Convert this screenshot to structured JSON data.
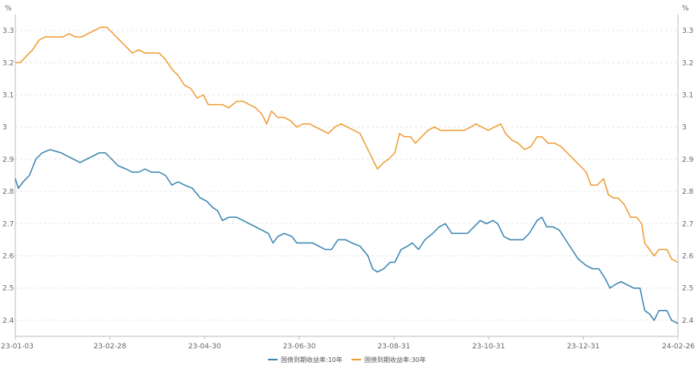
{
  "chart_data": {
    "type": "line",
    "left_unit": "%",
    "right_unit": "%",
    "ylim": [
      2.35,
      3.35
    ],
    "y_ticks": [
      2.4,
      2.5,
      2.6,
      2.7,
      2.8,
      2.9,
      3.0,
      3.1,
      3.2,
      3.3
    ],
    "y_tick_labels": [
      "2.4",
      "2.5",
      "2.6",
      "2.7",
      "2.8",
      "2.9",
      "3",
      "3.1",
      "3.2",
      "3.3"
    ],
    "x_range": [
      "23-01-03",
      "24-02-26"
    ],
    "x_tick_labels": [
      "23-01-03",
      "23-02-28",
      "23-04-30",
      "23-06-30",
      "23-08-31",
      "23-10-31",
      "23-12-31",
      "24-02-26"
    ],
    "grid": true,
    "legend_position": "bottom-center",
    "series": [
      {
        "name": "国债到期收益率:10年",
        "color": "#3a84b0",
        "points": [
          [
            "23-01-03",
            2.84
          ],
          [
            "23-01-05",
            2.81
          ],
          [
            "23-01-08",
            2.83
          ],
          [
            "23-01-12",
            2.85
          ],
          [
            "23-01-16",
            2.9
          ],
          [
            "23-01-20",
            2.92
          ],
          [
            "23-01-25",
            2.93
          ],
          [
            "23-02-01",
            2.92
          ],
          [
            "23-02-05",
            2.91
          ],
          [
            "23-02-09",
            2.9
          ],
          [
            "23-02-13",
            2.89
          ],
          [
            "23-02-17",
            2.9
          ],
          [
            "23-02-21",
            2.91
          ],
          [
            "23-02-25",
            2.92
          ],
          [
            "23-03-01",
            2.92
          ],
          [
            "23-03-05",
            2.9
          ],
          [
            "23-03-09",
            2.88
          ],
          [
            "23-03-14",
            2.87
          ],
          [
            "23-03-18",
            2.86
          ],
          [
            "23-03-22",
            2.86
          ],
          [
            "23-03-26",
            2.87
          ],
          [
            "23-03-30",
            2.86
          ],
          [
            "23-04-04",
            2.86
          ],
          [
            "23-04-08",
            2.85
          ],
          [
            "23-04-12",
            2.82
          ],
          [
            "23-04-16",
            2.83
          ],
          [
            "23-04-20",
            2.82
          ],
          [
            "23-04-25",
            2.81
          ],
          [
            "23-04-30",
            2.78
          ],
          [
            "23-05-04",
            2.77
          ],
          [
            "23-05-08",
            2.75
          ],
          [
            "23-05-11",
            2.74
          ],
          [
            "23-05-14",
            2.71
          ],
          [
            "23-05-18",
            2.72
          ],
          [
            "23-05-23",
            2.72
          ],
          [
            "23-05-27",
            2.71
          ],
          [
            "23-05-31",
            2.7
          ],
          [
            "23-06-04",
            2.69
          ],
          [
            "23-06-08",
            2.68
          ],
          [
            "23-06-12",
            2.67
          ],
          [
            "23-06-15",
            2.64
          ],
          [
            "23-06-18",
            2.66
          ],
          [
            "23-06-22",
            2.67
          ],
          [
            "23-06-27",
            2.66
          ],
          [
            "23-06-30",
            2.64
          ],
          [
            "23-07-05",
            2.64
          ],
          [
            "23-07-10",
            2.64
          ],
          [
            "23-07-14",
            2.63
          ],
          [
            "23-07-18",
            2.62
          ],
          [
            "23-07-22",
            2.62
          ],
          [
            "23-07-26",
            2.65
          ],
          [
            "23-07-31",
            2.65
          ],
          [
            "23-08-04",
            2.64
          ],
          [
            "23-08-09",
            2.63
          ],
          [
            "23-08-14",
            2.6
          ],
          [
            "23-08-17",
            2.56
          ],
          [
            "23-08-20",
            2.55
          ],
          [
            "23-08-24",
            2.56
          ],
          [
            "23-08-28",
            2.58
          ],
          [
            "23-08-31",
            2.58
          ],
          [
            "23-09-04",
            2.62
          ],
          [
            "23-09-08",
            2.63
          ],
          [
            "23-09-11",
            2.64
          ],
          [
            "23-09-15",
            2.62
          ],
          [
            "23-09-19",
            2.65
          ],
          [
            "23-09-24",
            2.67
          ],
          [
            "23-09-28",
            2.69
          ],
          [
            "23-10-02",
            2.7
          ],
          [
            "23-10-06",
            2.67
          ],
          [
            "23-10-11",
            2.67
          ],
          [
            "23-10-16",
            2.67
          ],
          [
            "23-10-20",
            2.69
          ],
          [
            "23-10-24",
            2.71
          ],
          [
            "23-10-28",
            2.7
          ],
          [
            "23-11-01",
            2.71
          ],
          [
            "23-11-04",
            2.7
          ],
          [
            "23-11-08",
            2.66
          ],
          [
            "23-11-12",
            2.65
          ],
          [
            "23-11-16",
            2.65
          ],
          [
            "23-11-20",
            2.65
          ],
          [
            "23-11-24",
            2.67
          ],
          [
            "23-11-29",
            2.71
          ],
          [
            "23-12-02",
            2.72
          ],
          [
            "23-12-05",
            2.69
          ],
          [
            "23-12-09",
            2.69
          ],
          [
            "23-12-13",
            2.68
          ],
          [
            "23-12-17",
            2.65
          ],
          [
            "23-12-21",
            2.62
          ],
          [
            "23-12-25",
            2.59
          ],
          [
            "23-12-30",
            2.57
          ],
          [
            "24-01-03",
            2.56
          ],
          [
            "24-01-07",
            2.56
          ],
          [
            "24-01-11",
            2.53
          ],
          [
            "24-01-14",
            2.5
          ],
          [
            "24-01-17",
            2.51
          ],
          [
            "24-01-21",
            2.52
          ],
          [
            "24-01-25",
            2.51
          ],
          [
            "24-01-29",
            2.5
          ],
          [
            "24-02-02",
            2.5
          ],
          [
            "24-02-05",
            2.43
          ],
          [
            "24-02-08",
            2.42
          ],
          [
            "24-02-11",
            2.4
          ],
          [
            "24-02-14",
            2.43
          ],
          [
            "24-02-19",
            2.43
          ],
          [
            "24-02-22",
            2.4
          ],
          [
            "24-02-26",
            2.39
          ]
        ]
      },
      {
        "name": "国债到期收益率:30年",
        "color": "#ee9d36",
        "points": [
          [
            "23-01-03",
            3.2
          ],
          [
            "23-01-06",
            3.2
          ],
          [
            "23-01-10",
            3.22
          ],
          [
            "23-01-14",
            3.24
          ],
          [
            "23-01-18",
            3.27
          ],
          [
            "23-01-22",
            3.28
          ],
          [
            "23-01-28",
            3.28
          ],
          [
            "23-02-02",
            3.28
          ],
          [
            "23-02-06",
            3.29
          ],
          [
            "23-02-10",
            3.28
          ],
          [
            "23-02-14",
            3.28
          ],
          [
            "23-02-18",
            3.29
          ],
          [
            "23-02-22",
            3.3
          ],
          [
            "23-02-26",
            3.31
          ],
          [
            "23-03-02",
            3.31
          ],
          [
            "23-03-06",
            3.29
          ],
          [
            "23-03-10",
            3.27
          ],
          [
            "23-03-14",
            3.25
          ],
          [
            "23-03-18",
            3.23
          ],
          [
            "23-03-22",
            3.24
          ],
          [
            "23-03-26",
            3.23
          ],
          [
            "23-03-30",
            3.23
          ],
          [
            "23-04-04",
            3.23
          ],
          [
            "23-04-08",
            3.21
          ],
          [
            "23-04-12",
            3.18
          ],
          [
            "23-04-16",
            3.16
          ],
          [
            "23-04-20",
            3.13
          ],
          [
            "23-04-24",
            3.12
          ],
          [
            "23-04-28",
            3.09
          ],
          [
            "23-05-02",
            3.1
          ],
          [
            "23-05-05",
            3.07
          ],
          [
            "23-05-09",
            3.07
          ],
          [
            "23-05-14",
            3.07
          ],
          [
            "23-05-18",
            3.06
          ],
          [
            "23-05-23",
            3.08
          ],
          [
            "23-05-27",
            3.08
          ],
          [
            "23-05-31",
            3.07
          ],
          [
            "23-06-04",
            3.06
          ],
          [
            "23-06-08",
            3.04
          ],
          [
            "23-06-11",
            3.01
          ],
          [
            "23-06-14",
            3.05
          ],
          [
            "23-06-18",
            3.03
          ],
          [
            "23-06-22",
            3.03
          ],
          [
            "23-06-26",
            3.02
          ],
          [
            "23-06-30",
            3.0
          ],
          [
            "23-07-04",
            3.01
          ],
          [
            "23-07-08",
            3.01
          ],
          [
            "23-07-12",
            3.0
          ],
          [
            "23-07-16",
            2.99
          ],
          [
            "23-07-20",
            2.98
          ],
          [
            "23-07-24",
            3.0
          ],
          [
            "23-07-28",
            3.01
          ],
          [
            "23-08-01",
            3.0
          ],
          [
            "23-08-05",
            2.99
          ],
          [
            "23-08-09",
            2.98
          ],
          [
            "23-08-13",
            2.94
          ],
          [
            "23-08-17",
            2.9
          ],
          [
            "23-08-20",
            2.87
          ],
          [
            "23-08-24",
            2.89
          ],
          [
            "23-08-27",
            2.9
          ],
          [
            "23-08-31",
            2.92
          ],
          [
            "23-09-03",
            2.98
          ],
          [
            "23-09-06",
            2.97
          ],
          [
            "23-09-10",
            2.97
          ],
          [
            "23-09-13",
            2.95
          ],
          [
            "23-09-17",
            2.97
          ],
          [
            "23-09-21",
            2.99
          ],
          [
            "23-09-25",
            3.0
          ],
          [
            "23-09-29",
            2.99
          ],
          [
            "23-10-04",
            2.99
          ],
          [
            "23-10-09",
            2.99
          ],
          [
            "23-10-14",
            2.99
          ],
          [
            "23-10-18",
            3.0
          ],
          [
            "23-10-21",
            3.01
          ],
          [
            "23-10-25",
            3.0
          ],
          [
            "23-10-29",
            2.99
          ],
          [
            "23-11-02",
            3.0
          ],
          [
            "23-11-06",
            3.01
          ],
          [
            "23-11-09",
            2.98
          ],
          [
            "23-11-13",
            2.96
          ],
          [
            "23-11-17",
            2.95
          ],
          [
            "23-11-21",
            2.93
          ],
          [
            "23-11-25",
            2.94
          ],
          [
            "23-11-29",
            2.97
          ],
          [
            "23-12-02",
            2.97
          ],
          [
            "23-12-06",
            2.95
          ],
          [
            "23-12-10",
            2.95
          ],
          [
            "23-12-14",
            2.94
          ],
          [
            "23-12-18",
            2.92
          ],
          [
            "23-12-22",
            2.9
          ],
          [
            "23-12-26",
            2.88
          ],
          [
            "23-12-30",
            2.86
          ],
          [
            "24-01-02",
            2.82
          ],
          [
            "24-01-06",
            2.82
          ],
          [
            "24-01-10",
            2.84
          ],
          [
            "24-01-13",
            2.79
          ],
          [
            "24-01-16",
            2.78
          ],
          [
            "24-01-19",
            2.78
          ],
          [
            "24-01-23",
            2.76
          ],
          [
            "24-01-27",
            2.72
          ],
          [
            "24-01-31",
            2.72
          ],
          [
            "24-02-03",
            2.7
          ],
          [
            "24-02-05",
            2.64
          ],
          [
            "24-02-08",
            2.62
          ],
          [
            "24-02-11",
            2.6
          ],
          [
            "24-02-14",
            2.62
          ],
          [
            "24-02-19",
            2.62
          ],
          [
            "24-02-22",
            2.59
          ],
          [
            "24-02-26",
            2.58
          ]
        ]
      }
    ]
  }
}
